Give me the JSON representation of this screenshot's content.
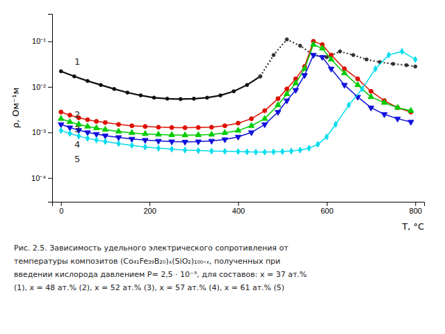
{
  "chart_data": {
    "type": "line",
    "log": "y",
    "grid": false,
    "xlabel": "T, °C",
    "ylabel": "ρ, Ом⁻¹м",
    "xlim": [
      -20,
      820
    ],
    "ylim": [
      3e-05,
      0.4
    ],
    "xticks": [
      0,
      200,
      400,
      600,
      800
    ],
    "yticks": [
      {
        "value": 0.0001,
        "label": "10⁻⁴"
      },
      {
        "value": 0.001,
        "label": "10⁻³"
      },
      {
        "value": 0.01,
        "label": "10⁻²"
      },
      {
        "value": 0.1,
        "label": "10⁻¹"
      }
    ],
    "caption": [
      "Рис. 2.5. Зависимость удельного электрического сопротивления  от",
      "температуры  композитов (Co₄₁Fe₃₉B₂₀)ₓ(SiO₂)₁₀₀-ₓ, полученных при",
      "введении кислорода давлением Р= 2,5 · 10⁻⁵, для составов: x = 37 ат.%",
      "(1), x = 48 ат.% (2), x = 52 ат.% (3), x = 57 ат.% (4), x = 61 ат.% (5)"
    ],
    "series": [
      {
        "name": "1",
        "color": "#101010",
        "marker": "point",
        "line_style": "solid",
        "x": [
          0,
          30,
          60,
          90,
          120,
          150,
          180,
          210,
          240,
          270,
          300,
          330,
          360,
          390,
          420,
          450
        ],
        "values": [
          0.022,
          0.017,
          0.0135,
          0.011,
          0.009,
          0.0075,
          0.0065,
          0.0058,
          0.0055,
          0.0054,
          0.0055,
          0.0058,
          0.0065,
          0.008,
          0.011,
          0.017
        ]
      },
      {
        "color": "#333333",
        "marker": "point",
        "line_style": "dotted",
        "x": [
          450,
          480,
          510,
          540,
          570,
          600,
          630,
          660,
          690,
          720,
          750,
          780,
          800
        ],
        "values": [
          0.017,
          0.05,
          0.11,
          0.08,
          0.05,
          0.045,
          0.06,
          0.05,
          0.04,
          0.035,
          0.032,
          0.03,
          0.028
        ]
      },
      {
        "name": "2",
        "color": "#dd1100",
        "marker": "circle",
        "line_style": "solid",
        "x": [
          0,
          20,
          40,
          60,
          80,
          100,
          130,
          160,
          190,
          220,
          250,
          280,
          310,
          340,
          370,
          400,
          430,
          460,
          490,
          510,
          530,
          550,
          570,
          590,
          610,
          640,
          670,
          700,
          730,
          760,
          790
        ],
        "values": [
          0.0028,
          0.0024,
          0.0021,
          0.0019,
          0.00175,
          0.00165,
          0.0015,
          0.0014,
          0.00135,
          0.0013,
          0.00128,
          0.00127,
          0.00128,
          0.0013,
          0.0014,
          0.0016,
          0.002,
          0.003,
          0.0055,
          0.009,
          0.015,
          0.028,
          0.1,
          0.085,
          0.05,
          0.025,
          0.015,
          0.008,
          0.005,
          0.0035,
          0.0028
        ]
      },
      {
        "name": "3",
        "color": "#00cc00",
        "marker": "triangle-up",
        "line_style": "solid",
        "x": [
          0,
          20,
          40,
          60,
          80,
          100,
          130,
          160,
          190,
          220,
          250,
          280,
          310,
          340,
          370,
          400,
          430,
          460,
          490,
          510,
          530,
          550,
          570,
          590,
          610,
          640,
          670,
          700,
          730,
          760,
          790
        ],
        "values": [
          0.002,
          0.0017,
          0.0015,
          0.00135,
          0.00125,
          0.00115,
          0.00105,
          0.00098,
          0.00093,
          0.0009,
          0.00088,
          0.00087,
          0.00088,
          0.0009,
          0.00098,
          0.0011,
          0.0014,
          0.002,
          0.004,
          0.007,
          0.012,
          0.025,
          0.085,
          0.07,
          0.04,
          0.02,
          0.011,
          0.006,
          0.0045,
          0.0035,
          0.003
        ]
      },
      {
        "name": "4",
        "color": "#1111dd",
        "marker": "triangle-down",
        "line_style": "solid",
        "x": [
          0,
          20,
          40,
          60,
          80,
          100,
          130,
          160,
          190,
          220,
          250,
          280,
          310,
          340,
          370,
          400,
          430,
          460,
          490,
          510,
          530,
          550,
          570,
          590,
          610,
          640,
          670,
          700,
          730,
          760,
          790
        ],
        "values": [
          0.0015,
          0.00128,
          0.00112,
          0.001,
          0.00092,
          0.00085,
          0.00078,
          0.00072,
          0.00068,
          0.00065,
          0.00063,
          0.00062,
          0.00063,
          0.00065,
          0.0007,
          0.0008,
          0.001,
          0.0015,
          0.0028,
          0.005,
          0.0085,
          0.018,
          0.05,
          0.045,
          0.025,
          0.011,
          0.006,
          0.0035,
          0.0025,
          0.002,
          0.0017
        ]
      },
      {
        "name": "5",
        "color": "#00ddee",
        "marker": "diamond",
        "line_style": "solid",
        "x": [
          0,
          20,
          40,
          60,
          80,
          100,
          130,
          160,
          190,
          220,
          250,
          280,
          310,
          340,
          370,
          400,
          420,
          440,
          460,
          480,
          500,
          520,
          540,
          560,
          580,
          600,
          620,
          650,
          680,
          710,
          740,
          770,
          800
        ],
        "values": [
          0.0011,
          0.00095,
          0.00083,
          0.00074,
          0.00068,
          0.00063,
          0.00057,
          0.00052,
          0.00048,
          0.00045,
          0.00043,
          0.00041,
          0.0004,
          0.00039,
          0.000385,
          0.00038,
          0.000375,
          0.00037,
          0.00037,
          0.000375,
          0.00038,
          0.00039,
          0.00041,
          0.00045,
          0.00055,
          0.0008,
          0.0015,
          0.004,
          0.009,
          0.025,
          0.05,
          0.06,
          0.04
        ]
      }
    ]
  }
}
